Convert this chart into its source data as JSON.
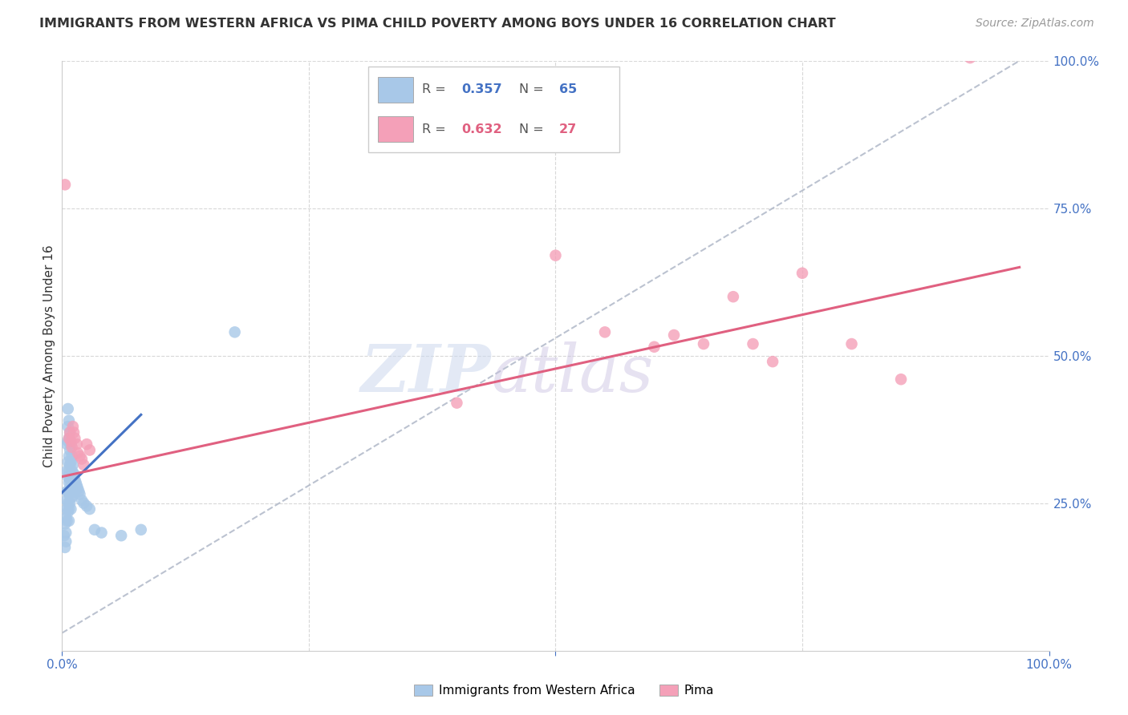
{
  "title": "IMMIGRANTS FROM WESTERN AFRICA VS PIMA CHILD POVERTY AMONG BOYS UNDER 16 CORRELATION CHART",
  "source": "Source: ZipAtlas.com",
  "ylabel": "Child Poverty Among Boys Under 16",
  "xlim": [
    0,
    1
  ],
  "ylim": [
    0,
    1
  ],
  "color_blue": "#a8c8e8",
  "color_pink": "#f4a0b8",
  "line_blue": "#4472c4",
  "line_pink": "#e06080",
  "line_dashed_color": "#b0b8c8",
  "background": "#ffffff",
  "grid_color": "#d8d8d8",
  "blue_scatter": [
    [
      0.002,
      0.195
    ],
    [
      0.003,
      0.215
    ],
    [
      0.003,
      0.175
    ],
    [
      0.004,
      0.225
    ],
    [
      0.004,
      0.2
    ],
    [
      0.004,
      0.185
    ],
    [
      0.005,
      0.35
    ],
    [
      0.005,
      0.305
    ],
    [
      0.005,
      0.27
    ],
    [
      0.005,
      0.255
    ],
    [
      0.005,
      0.24
    ],
    [
      0.005,
      0.22
    ],
    [
      0.006,
      0.41
    ],
    [
      0.006,
      0.38
    ],
    [
      0.006,
      0.355
    ],
    [
      0.006,
      0.32
    ],
    [
      0.006,
      0.295
    ],
    [
      0.006,
      0.27
    ],
    [
      0.006,
      0.25
    ],
    [
      0.006,
      0.235
    ],
    [
      0.007,
      0.39
    ],
    [
      0.007,
      0.36
    ],
    [
      0.007,
      0.33
    ],
    [
      0.007,
      0.305
    ],
    [
      0.007,
      0.285
    ],
    [
      0.007,
      0.265
    ],
    [
      0.007,
      0.24
    ],
    [
      0.007,
      0.22
    ],
    [
      0.008,
      0.37
    ],
    [
      0.008,
      0.34
    ],
    [
      0.008,
      0.315
    ],
    [
      0.008,
      0.29
    ],
    [
      0.008,
      0.27
    ],
    [
      0.008,
      0.25
    ],
    [
      0.009,
      0.35
    ],
    [
      0.009,
      0.32
    ],
    [
      0.009,
      0.3
    ],
    [
      0.009,
      0.28
    ],
    [
      0.009,
      0.26
    ],
    [
      0.009,
      0.24
    ],
    [
      0.01,
      0.33
    ],
    [
      0.01,
      0.305
    ],
    [
      0.01,
      0.285
    ],
    [
      0.01,
      0.26
    ],
    [
      0.011,
      0.315
    ],
    [
      0.011,
      0.295
    ],
    [
      0.011,
      0.275
    ],
    [
      0.012,
      0.3
    ],
    [
      0.012,
      0.28
    ],
    [
      0.013,
      0.29
    ],
    [
      0.013,
      0.27
    ],
    [
      0.014,
      0.285
    ],
    [
      0.015,
      0.28
    ],
    [
      0.016,
      0.275
    ],
    [
      0.017,
      0.27
    ],
    [
      0.018,
      0.265
    ],
    [
      0.02,
      0.255
    ],
    [
      0.022,
      0.25
    ],
    [
      0.025,
      0.245
    ],
    [
      0.028,
      0.24
    ],
    [
      0.033,
      0.205
    ],
    [
      0.04,
      0.2
    ],
    [
      0.06,
      0.195
    ],
    [
      0.08,
      0.205
    ],
    [
      0.175,
      0.54
    ]
  ],
  "pink_scatter": [
    [
      0.003,
      0.79
    ],
    [
      0.007,
      0.36
    ],
    [
      0.008,
      0.37
    ],
    [
      0.009,
      0.355
    ],
    [
      0.01,
      0.345
    ],
    [
      0.011,
      0.38
    ],
    [
      0.012,
      0.37
    ],
    [
      0.013,
      0.36
    ],
    [
      0.015,
      0.35
    ],
    [
      0.016,
      0.335
    ],
    [
      0.018,
      0.33
    ],
    [
      0.02,
      0.325
    ],
    [
      0.022,
      0.315
    ],
    [
      0.025,
      0.35
    ],
    [
      0.028,
      0.34
    ],
    [
      0.4,
      0.42
    ],
    [
      0.5,
      0.67
    ],
    [
      0.55,
      0.54
    ],
    [
      0.6,
      0.515
    ],
    [
      0.62,
      0.535
    ],
    [
      0.65,
      0.52
    ],
    [
      0.68,
      0.6
    ],
    [
      0.7,
      0.52
    ],
    [
      0.72,
      0.49
    ],
    [
      0.75,
      0.64
    ],
    [
      0.8,
      0.52
    ],
    [
      0.85,
      0.46
    ],
    [
      0.92,
      1.005
    ]
  ],
  "blue_line": [
    [
      0.0,
      0.268
    ],
    [
      0.08,
      0.4
    ]
  ],
  "pink_line": [
    [
      0.0,
      0.295
    ],
    [
      0.97,
      0.65
    ]
  ],
  "dashed_line": [
    [
      0.0,
      0.03
    ],
    [
      0.97,
      1.0
    ]
  ],
  "legend_r1_color": "#4472c4",
  "legend_r2_color": "#e06080",
  "legend_text_color": "#555555",
  "title_color": "#333333",
  "source_color": "#999999",
  "axis_label_color": "#4472c4"
}
